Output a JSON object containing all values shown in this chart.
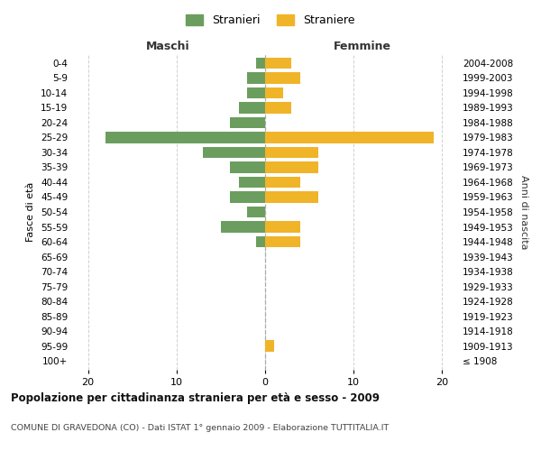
{
  "age_groups": [
    "100+",
    "95-99",
    "90-94",
    "85-89",
    "80-84",
    "75-79",
    "70-74",
    "65-69",
    "60-64",
    "55-59",
    "50-54",
    "45-49",
    "40-44",
    "35-39",
    "30-34",
    "25-29",
    "20-24",
    "15-19",
    "10-14",
    "5-9",
    "0-4"
  ],
  "birth_years": [
    "≤ 1908",
    "1909-1913",
    "1914-1918",
    "1919-1923",
    "1924-1928",
    "1929-1933",
    "1934-1938",
    "1939-1943",
    "1944-1948",
    "1949-1953",
    "1954-1958",
    "1959-1963",
    "1964-1968",
    "1969-1973",
    "1974-1978",
    "1979-1983",
    "1984-1988",
    "1989-1993",
    "1994-1998",
    "1999-2003",
    "2004-2008"
  ],
  "maschi": [
    0,
    0,
    0,
    0,
    0,
    0,
    0,
    0,
    1,
    5,
    2,
    4,
    3,
    4,
    7,
    18,
    4,
    3,
    2,
    2,
    1
  ],
  "femmine": [
    0,
    1,
    0,
    0,
    0,
    0,
    0,
    0,
    4,
    4,
    0,
    6,
    4,
    6,
    6,
    19,
    0,
    3,
    2,
    4,
    3
  ],
  "color_maschi": "#6b9e5e",
  "color_femmine": "#f0b429",
  "title": "Popolazione per cittadinanza straniera per età e sesso - 2009",
  "subtitle": "COMUNE DI GRAVEDONA (CO) - Dati ISTAT 1° gennaio 2009 - Elaborazione TUTTITALIA.IT",
  "xlabel_left": "Maschi",
  "xlabel_right": "Femmine",
  "ylabel_left": "Fasce di età",
  "ylabel_right": "Anni di nascita",
  "legend_maschi": "Stranieri",
  "legend_femmine": "Straniere",
  "xlim": 22,
  "background_color": "#ffffff",
  "grid_color": "#d0d0d0"
}
